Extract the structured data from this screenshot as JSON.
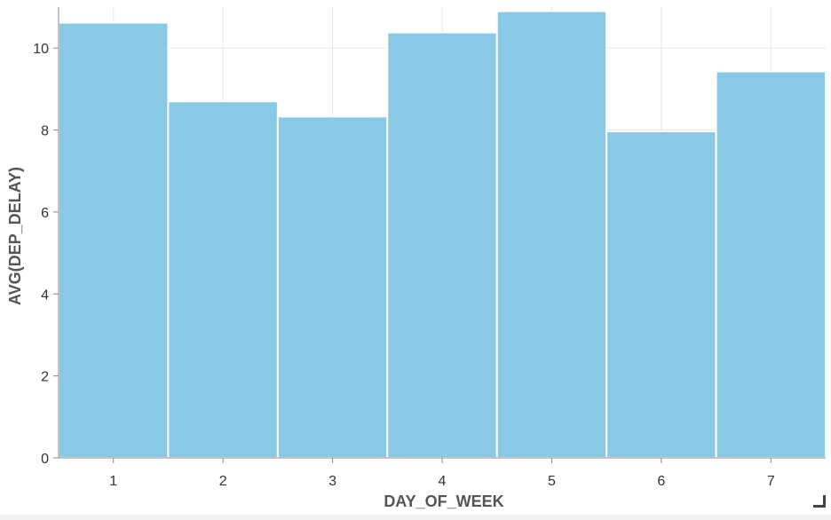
{
  "chart_data": {
    "type": "bar",
    "categories": [
      "1",
      "2",
      "3",
      "4",
      "5",
      "6",
      "7"
    ],
    "values": [
      10.62,
      8.7,
      8.33,
      10.38,
      10.9,
      7.97,
      9.43
    ],
    "xlabel": "DAY_OF_WEEK",
    "ylabel": "AVG(DEP_DELAY)",
    "ylim": [
      0,
      11
    ],
    "yticks": [
      0,
      2,
      4,
      6,
      8,
      10
    ],
    "grid": true,
    "legend": "none",
    "colors": {
      "bar": "#8ac9e5",
      "grid": "#e6e6e6",
      "axis": "#888888"
    }
  }
}
